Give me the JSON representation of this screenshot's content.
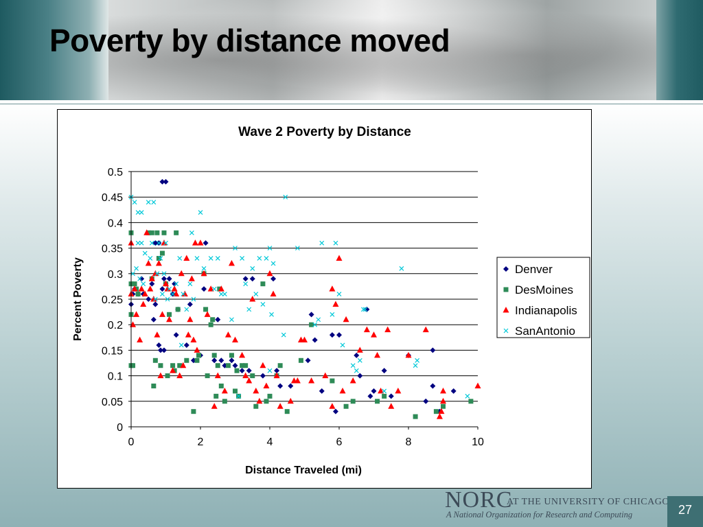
{
  "slide": {
    "title": "Poverty by distance moved",
    "page_number": "27"
  },
  "footer": {
    "logo_word": "NORC",
    "logo_tagline": "AT THE UNIVERSITY OF CHICAGO",
    "logo_subtitle": "A National Organization for Research and Computing"
  },
  "chart_data": {
    "type": "scatter",
    "title": "Wave 2 Poverty by Distance",
    "xlabel": "Distance Traveled (mi)",
    "ylabel": "Percent Poverty",
    "xlim": [
      0,
      10
    ],
    "ylim": [
      0,
      0.5
    ],
    "x_ticks": [
      "0",
      "2",
      "4",
      "6",
      "8",
      "10"
    ],
    "y_ticks": [
      "0",
      "0.05",
      "0.1",
      "0.15",
      "0.2",
      "0.25",
      "0.3",
      "0.35",
      "0.4",
      "0.45",
      "0.5"
    ],
    "grid": "horizontal",
    "legend_position": "right",
    "series": [
      {
        "name": "Denver",
        "marker": "diamond",
        "color": "#000080",
        "points": [
          [
            0.0,
            0.24
          ],
          [
            0.05,
            0.26
          ],
          [
            0.1,
            0.27
          ],
          [
            0.2,
            0.26
          ],
          [
            0.3,
            0.29
          ],
          [
            0.35,
            0.26
          ],
          [
            0.5,
            0.25
          ],
          [
            0.6,
            0.28
          ],
          [
            0.65,
            0.21
          ],
          [
            0.7,
            0.24
          ],
          [
            0.7,
            0.36
          ],
          [
            0.8,
            0.16
          ],
          [
            0.8,
            0.36
          ],
          [
            0.85,
            0.15
          ],
          [
            0.9,
            0.48
          ],
          [
            0.9,
            0.27
          ],
          [
            0.95,
            0.15
          ],
          [
            0.95,
            0.29
          ],
          [
            1.0,
            0.48
          ],
          [
            1.0,
            0.28
          ],
          [
            1.1,
            0.29
          ],
          [
            1.2,
            0.26
          ],
          [
            1.25,
            0.28
          ],
          [
            1.3,
            0.18
          ],
          [
            1.35,
            0.23
          ],
          [
            1.6,
            0.16
          ],
          [
            1.7,
            0.24
          ],
          [
            1.8,
            0.13
          ],
          [
            2.0,
            0.14
          ],
          [
            2.1,
            0.27
          ],
          [
            2.15,
            0.36
          ],
          [
            2.4,
            0.13
          ],
          [
            2.5,
            0.21
          ],
          [
            2.6,
            0.13
          ],
          [
            2.7,
            0.12
          ],
          [
            2.9,
            0.13
          ],
          [
            3.0,
            0.12
          ],
          [
            3.2,
            0.11
          ],
          [
            3.3,
            0.29
          ],
          [
            3.4,
            0.11
          ],
          [
            3.5,
            0.29
          ],
          [
            3.8,
            0.1
          ],
          [
            4.1,
            0.29
          ],
          [
            4.2,
            0.11
          ],
          [
            4.3,
            0.08
          ],
          [
            4.6,
            0.08
          ],
          [
            5.1,
            0.13
          ],
          [
            5.2,
            0.22
          ],
          [
            5.3,
            0.17
          ],
          [
            5.5,
            0.07
          ],
          [
            5.8,
            0.18
          ],
          [
            5.9,
            0.03
          ],
          [
            6.0,
            0.18
          ],
          [
            6.5,
            0.14
          ],
          [
            6.6,
            0.1
          ],
          [
            6.8,
            0.23
          ],
          [
            6.9,
            0.06
          ],
          [
            7.0,
            0.07
          ],
          [
            7.3,
            0.11
          ],
          [
            7.5,
            0.06
          ],
          [
            8.0,
            0.14
          ],
          [
            8.5,
            0.05
          ],
          [
            8.7,
            0.15
          ],
          [
            8.7,
            0.08
          ],
          [
            8.9,
            0.03
          ],
          [
            9.3,
            0.07
          ]
        ]
      },
      {
        "name": "DesMoines",
        "marker": "square",
        "color": "#2e8b57",
        "points": [
          [
            0.0,
            0.38
          ],
          [
            0.0,
            0.28
          ],
          [
            0.0,
            0.22
          ],
          [
            0.0,
            0.12
          ],
          [
            0.05,
            0.12
          ],
          [
            0.1,
            0.28
          ],
          [
            0.15,
            0.27
          ],
          [
            0.2,
            0.26
          ],
          [
            0.5,
            0.38
          ],
          [
            0.6,
            0.38
          ],
          [
            0.6,
            0.29
          ],
          [
            0.65,
            0.08
          ],
          [
            0.7,
            0.13
          ],
          [
            0.75,
            0.38
          ],
          [
            0.8,
            0.33
          ],
          [
            0.85,
            0.12
          ],
          [
            0.9,
            0.34
          ],
          [
            0.95,
            0.38
          ],
          [
            1.0,
            0.28
          ],
          [
            1.05,
            0.1
          ],
          [
            1.1,
            0.22
          ],
          [
            1.2,
            0.12
          ],
          [
            1.25,
            0.11
          ],
          [
            1.3,
            0.38
          ],
          [
            1.35,
            0.23
          ],
          [
            1.4,
            0.12
          ],
          [
            1.6,
            0.13
          ],
          [
            1.8,
            0.03
          ],
          [
            1.9,
            0.13
          ],
          [
            1.95,
            0.14
          ],
          [
            2.1,
            0.3
          ],
          [
            2.15,
            0.23
          ],
          [
            2.2,
            0.1
          ],
          [
            2.3,
            0.2
          ],
          [
            2.35,
            0.21
          ],
          [
            2.4,
            0.14
          ],
          [
            2.45,
            0.06
          ],
          [
            2.5,
            0.12
          ],
          [
            2.55,
            0.27
          ],
          [
            2.6,
            0.08
          ],
          [
            2.7,
            0.05
          ],
          [
            2.8,
            0.12
          ],
          [
            2.9,
            0.14
          ],
          [
            3.0,
            0.07
          ],
          [
            3.05,
            0.11
          ],
          [
            3.1,
            0.06
          ],
          [
            3.2,
            0.12
          ],
          [
            3.3,
            0.12
          ],
          [
            3.5,
            0.1
          ],
          [
            3.6,
            0.04
          ],
          [
            3.8,
            0.28
          ],
          [
            3.9,
            0.05
          ],
          [
            4.0,
            0.06
          ],
          [
            4.2,
            0.1
          ],
          [
            4.3,
            0.12
          ],
          [
            4.5,
            0.03
          ],
          [
            4.9,
            0.13
          ],
          [
            5.2,
            0.2
          ],
          [
            5.8,
            0.09
          ],
          [
            6.2,
            0.04
          ],
          [
            6.4,
            0.05
          ],
          [
            7.1,
            0.05
          ],
          [
            7.3,
            0.06
          ],
          [
            8.2,
            0.02
          ],
          [
            8.8,
            0.03
          ],
          [
            9.0,
            0.04
          ],
          [
            9.8,
            0.05
          ]
        ]
      },
      {
        "name": "Indianapolis",
        "marker": "triangle",
        "color": "#ff0000",
        "points": [
          [
            0.0,
            0.36
          ],
          [
            0.0,
            0.26
          ],
          [
            0.05,
            0.2
          ],
          [
            0.1,
            0.27
          ],
          [
            0.15,
            0.22
          ],
          [
            0.25,
            0.17
          ],
          [
            0.3,
            0.27
          ],
          [
            0.35,
            0.24
          ],
          [
            0.4,
            0.26
          ],
          [
            0.45,
            0.38
          ],
          [
            0.5,
            0.32
          ],
          [
            0.55,
            0.27
          ],
          [
            0.6,
            0.29
          ],
          [
            0.65,
            0.25
          ],
          [
            0.7,
            0.3
          ],
          [
            0.75,
            0.18
          ],
          [
            0.8,
            0.32
          ],
          [
            0.85,
            0.1
          ],
          [
            0.9,
            0.22
          ],
          [
            0.95,
            0.36
          ],
          [
            1.0,
            0.28
          ],
          [
            1.05,
            0.27
          ],
          [
            1.1,
            0.21
          ],
          [
            1.2,
            0.11
          ],
          [
            1.25,
            0.27
          ],
          [
            1.3,
            0.26
          ],
          [
            1.4,
            0.1
          ],
          [
            1.45,
            0.3
          ],
          [
            1.5,
            0.12
          ],
          [
            1.55,
            0.26
          ],
          [
            1.6,
            0.33
          ],
          [
            1.65,
            0.18
          ],
          [
            1.7,
            0.21
          ],
          [
            1.75,
            0.29
          ],
          [
            1.8,
            0.17
          ],
          [
            1.85,
            0.36
          ],
          [
            1.9,
            0.15
          ],
          [
            2.0,
            0.36
          ],
          [
            2.1,
            0.3
          ],
          [
            2.2,
            0.22
          ],
          [
            2.3,
            0.27
          ],
          [
            2.4,
            0.04
          ],
          [
            2.5,
            0.1
          ],
          [
            2.6,
            0.27
          ],
          [
            2.7,
            0.07
          ],
          [
            2.8,
            0.18
          ],
          [
            2.9,
            0.32
          ],
          [
            3.0,
            0.17
          ],
          [
            3.2,
            0.14
          ],
          [
            3.3,
            0.1
          ],
          [
            3.4,
            0.09
          ],
          [
            3.5,
            0.25
          ],
          [
            3.6,
            0.07
          ],
          [
            3.7,
            0.05
          ],
          [
            3.8,
            0.12
          ],
          [
            3.9,
            0.08
          ],
          [
            4.0,
            0.3
          ],
          [
            4.1,
            0.26
          ],
          [
            4.2,
            0.1
          ],
          [
            4.3,
            0.04
          ],
          [
            4.6,
            0.05
          ],
          [
            4.7,
            0.09
          ],
          [
            4.8,
            0.09
          ],
          [
            4.9,
            0.17
          ],
          [
            5.0,
            0.17
          ],
          [
            5.2,
            0.09
          ],
          [
            5.6,
            0.1
          ],
          [
            5.8,
            0.04
          ],
          [
            5.8,
            0.27
          ],
          [
            5.9,
            0.24
          ],
          [
            6.0,
            0.33
          ],
          [
            6.1,
            0.07
          ],
          [
            6.2,
            0.21
          ],
          [
            6.4,
            0.09
          ],
          [
            6.6,
            0.15
          ],
          [
            6.8,
            0.19
          ],
          [
            7.0,
            0.18
          ],
          [
            7.1,
            0.14
          ],
          [
            7.2,
            0.07
          ],
          [
            7.4,
            0.19
          ],
          [
            7.5,
            0.04
          ],
          [
            7.7,
            0.07
          ],
          [
            8.0,
            0.14
          ],
          [
            8.5,
            0.19
          ],
          [
            8.9,
            0.02
          ],
          [
            8.95,
            0.03
          ],
          [
            9.0,
            0.07
          ],
          [
            9.0,
            0.05
          ],
          [
            10.0,
            0.08
          ]
        ]
      },
      {
        "name": "SanAntonio",
        "marker": "x",
        "color": "#00c8d8",
        "points": [
          [
            0.0,
            0.45
          ],
          [
            0.05,
            0.3
          ],
          [
            0.1,
            0.44
          ],
          [
            0.15,
            0.31
          ],
          [
            0.2,
            0.42
          ],
          [
            0.2,
            0.36
          ],
          [
            0.25,
            0.29
          ],
          [
            0.3,
            0.42
          ],
          [
            0.3,
            0.36
          ],
          [
            0.35,
            0.28
          ],
          [
            0.4,
            0.34
          ],
          [
            0.5,
            0.44
          ],
          [
            0.55,
            0.33
          ],
          [
            0.6,
            0.36
          ],
          [
            0.65,
            0.44
          ],
          [
            0.7,
            0.25
          ],
          [
            0.75,
            0.3
          ],
          [
            0.8,
            0.36
          ],
          [
            0.85,
            0.33
          ],
          [
            0.9,
            0.26
          ],
          [
            0.95,
            0.3
          ],
          [
            1.0,
            0.36
          ],
          [
            1.05,
            0.25
          ],
          [
            1.1,
            0.27
          ],
          [
            1.2,
            0.26
          ],
          [
            1.3,
            0.28
          ],
          [
            1.4,
            0.33
          ],
          [
            1.45,
            0.16
          ],
          [
            1.5,
            0.26
          ],
          [
            1.6,
            0.23
          ],
          [
            1.7,
            0.28
          ],
          [
            1.75,
            0.38
          ],
          [
            1.8,
            0.25
          ],
          [
            1.9,
            0.33
          ],
          [
            2.0,
            0.42
          ],
          [
            2.1,
            0.31
          ],
          [
            2.3,
            0.33
          ],
          [
            2.4,
            0.27
          ],
          [
            2.5,
            0.33
          ],
          [
            2.6,
            0.26
          ],
          [
            2.7,
            0.26
          ],
          [
            2.9,
            0.21
          ],
          [
            3.0,
            0.35
          ],
          [
            3.1,
            0.06
          ],
          [
            3.2,
            0.33
          ],
          [
            3.3,
            0.28
          ],
          [
            3.4,
            0.23
          ],
          [
            3.5,
            0.31
          ],
          [
            3.6,
            0.26
          ],
          [
            3.7,
            0.33
          ],
          [
            3.8,
            0.24
          ],
          [
            3.9,
            0.33
          ],
          [
            4.0,
            0.11
          ],
          [
            4.0,
            0.35
          ],
          [
            4.05,
            0.22
          ],
          [
            4.1,
            0.32
          ],
          [
            4.4,
            0.18
          ],
          [
            4.45,
            0.45
          ],
          [
            4.8,
            0.35
          ],
          [
            5.3,
            0.2
          ],
          [
            5.4,
            0.21
          ],
          [
            5.5,
            0.36
          ],
          [
            5.8,
            0.22
          ],
          [
            5.9,
            0.36
          ],
          [
            6.0,
            0.26
          ],
          [
            6.1,
            0.16
          ],
          [
            6.4,
            0.12
          ],
          [
            6.5,
            0.11
          ],
          [
            6.6,
            0.13
          ],
          [
            6.7,
            0.23
          ],
          [
            6.75,
            0.23
          ],
          [
            7.3,
            0.07
          ],
          [
            7.8,
            0.31
          ],
          [
            8.2,
            0.12
          ],
          [
            8.25,
            0.13
          ],
          [
            9.7,
            0.06
          ]
        ]
      }
    ]
  }
}
